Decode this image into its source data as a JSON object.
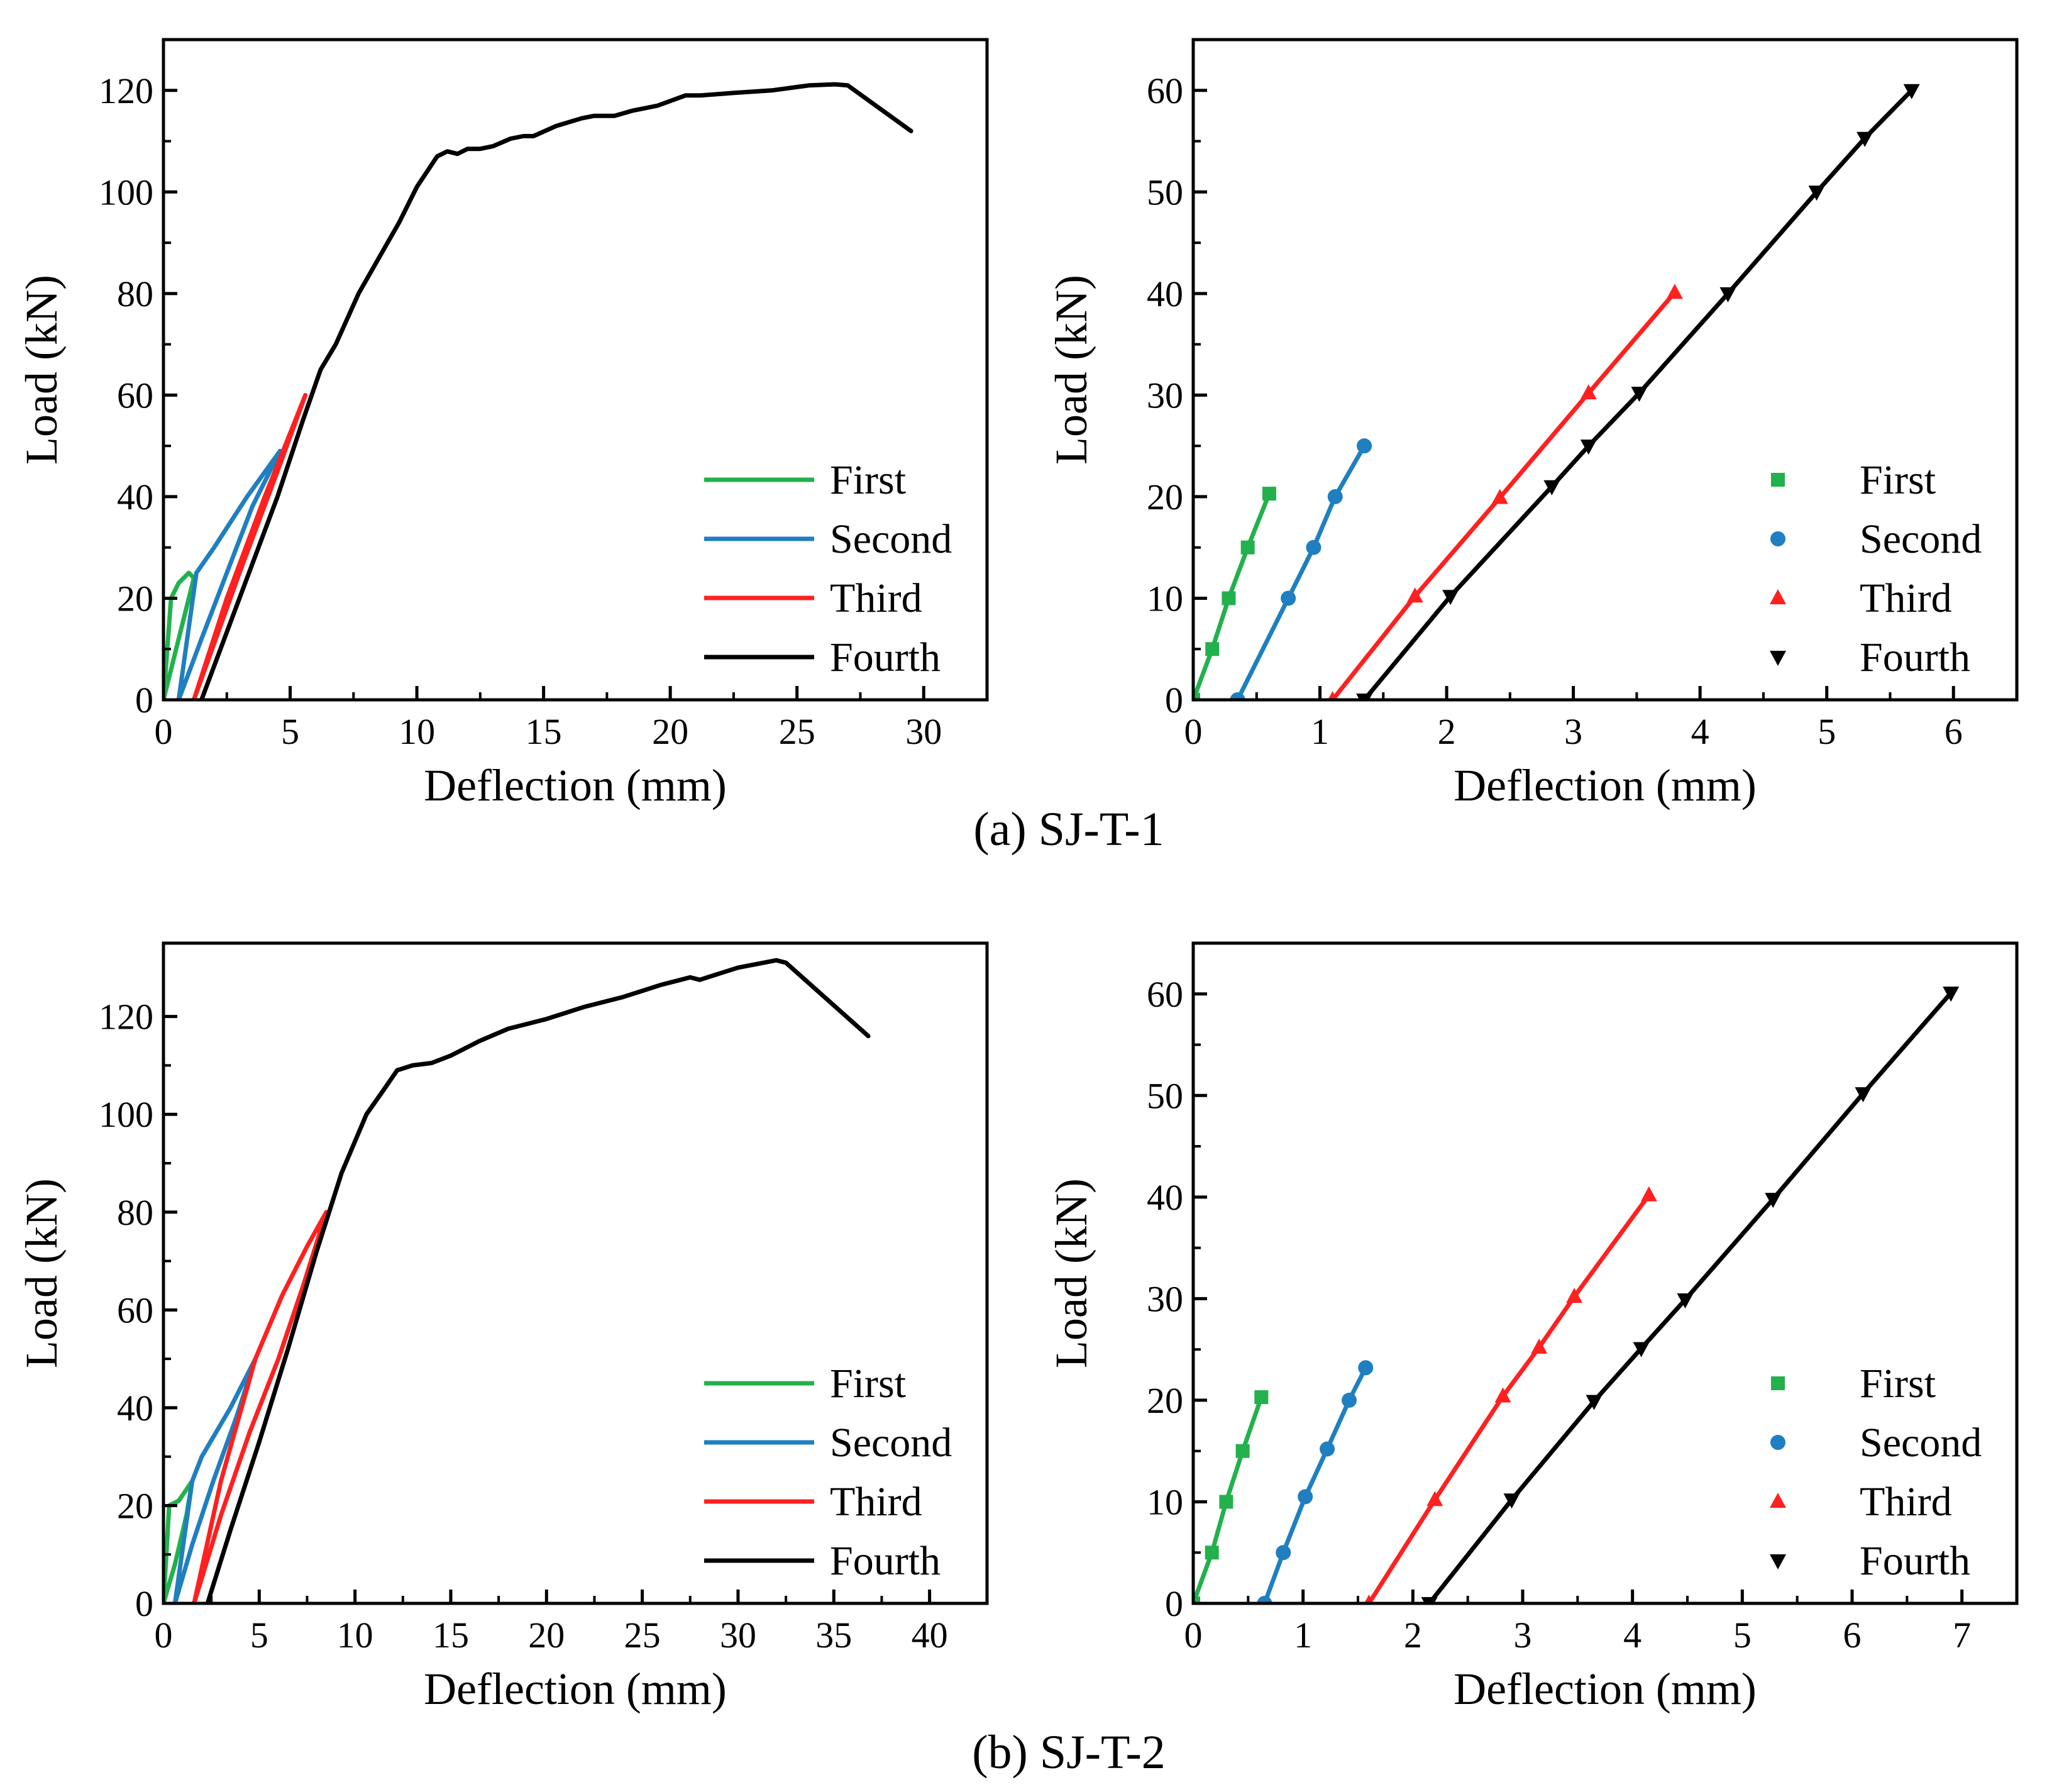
{
  "captions": [
    "(a) SJ-T-1",
    "(b) SJ-T-2"
  ],
  "colors": {
    "First": "#22b14c",
    "Second": "#1f7fc0",
    "Third": "#ff2020",
    "Fourth": "#000000"
  },
  "chart_data": [
    {
      "type": "line",
      "xlabel": "Deflection (mm)",
      "ylabel": "Load (kN)",
      "xlim": [
        0,
        32.5
      ],
      "ylim": [
        0,
        130
      ],
      "xticks": [
        0,
        5,
        10,
        15,
        20,
        25,
        30
      ],
      "yticks": [
        0,
        20,
        40,
        60,
        80,
        100,
        120
      ],
      "legend": "bottom-right",
      "series": [
        {
          "name": "First",
          "x": [
            0,
            0.3,
            0.6,
            1.0,
            1.2,
            0.5,
            0
          ],
          "y": [
            0,
            20,
            23,
            25,
            24,
            10,
            0
          ]
        },
        {
          "name": "Second",
          "x": [
            0.6,
            1.3,
            2.0,
            3.3,
            4.6,
            3.5,
            2.5,
            1.5,
            0.6
          ],
          "y": [
            0,
            25,
            30,
            40,
            49,
            38,
            25,
            12,
            0
          ]
        },
        {
          "name": "Third",
          "x": [
            1.2,
            2.5,
            4.0,
            5.6,
            4.5,
            3.0,
            1.2
          ],
          "y": [
            0,
            20,
            40,
            60,
            45,
            25,
            0
          ]
        },
        {
          "name": "Fourth",
          "x": [
            1.5,
            3.0,
            4.5,
            5.5,
            6.2,
            6.8,
            7.7,
            8.5,
            9.3,
            10.0,
            10.8,
            11.2,
            11.6,
            12.0,
            12.5,
            13.0,
            13.7,
            14.2,
            14.6,
            15.5,
            16.5,
            17.0,
            17.8,
            18.5,
            19.5,
            20.6,
            21.2,
            22.5,
            24.0,
            25.5,
            26.5,
            27.0,
            29.5
          ],
          "y": [
            0,
            20,
            40,
            55,
            65,
            70,
            80,
            87,
            94,
            101,
            107,
            108,
            107.5,
            108.5,
            108.5,
            109,
            110.5,
            111,
            111,
            113,
            114.5,
            115,
            115,
            116,
            117,
            119,
            119,
            119.5,
            120,
            121,
            121.2,
            121,
            112
          ]
        }
      ]
    },
    {
      "type": "scatter",
      "xlabel": "Deflection (mm)",
      "ylabel": "Load (kN)",
      "xlim": [
        0,
        6.5
      ],
      "ylim": [
        0,
        65
      ],
      "xticks": [
        0,
        1,
        2,
        3,
        4,
        5,
        6
      ],
      "yticks": [
        0,
        10,
        20,
        30,
        40,
        50,
        60
      ],
      "legend": "bottom-right",
      "series": [
        {
          "name": "First",
          "marker": "square",
          "x": [
            0,
            0.15,
            0.28,
            0.43,
            0.6
          ],
          "y": [
            0,
            5,
            10,
            15,
            20.3
          ]
        },
        {
          "name": "Second",
          "marker": "circle",
          "x": [
            0.35,
            0.75,
            0.95,
            1.12,
            1.35
          ],
          "y": [
            0,
            10,
            15,
            20,
            25
          ]
        },
        {
          "name": "Third",
          "marker": "triangle-up",
          "x": [
            1.1,
            1.75,
            2.42,
            3.12,
            3.8
          ],
          "y": [
            0,
            10.2,
            19.9,
            30.2,
            40.1
          ]
        },
        {
          "name": "Fourth",
          "marker": "triangle-down",
          "x": [
            1.35,
            2.03,
            2.83,
            3.12,
            3.52,
            4.22,
            4.92,
            5.3,
            5.67
          ],
          "y": [
            0,
            10.2,
            21,
            25,
            30.2,
            40,
            50,
            55.3,
            60
          ]
        }
      ]
    },
    {
      "type": "line",
      "xlabel": "Deflection (mm)",
      "ylabel": "Load (kN)",
      "xlim": [
        0,
        43
      ],
      "ylim": [
        0,
        135
      ],
      "xticks": [
        0,
        5,
        10,
        15,
        20,
        25,
        30,
        35,
        40
      ],
      "yticks": [
        0,
        20,
        40,
        60,
        80,
        100,
        120
      ],
      "legend": "bottom-right",
      "series": [
        {
          "name": "First",
          "x": [
            0,
            0.3,
            0.8,
            1.5,
            1.2,
            0.6,
            0
          ],
          "y": [
            0,
            20,
            21,
            25,
            18,
            8,
            0
          ]
        },
        {
          "name": "Second",
          "x": [
            0.6,
            1.5,
            2.0,
            3.5,
            4.8,
            3.8,
            2.6,
            1.5,
            0.6
          ],
          "y": [
            0,
            25,
            30,
            40,
            50,
            38,
            25,
            12,
            0
          ]
        },
        {
          "name": "Third",
          "x": [
            1.6,
            3.0,
            4.8,
            6.2,
            7.5,
            8.5,
            7.3,
            6.0,
            4.5,
            3.0,
            1.6
          ],
          "y": [
            0,
            25,
            50,
            63,
            73,
            80,
            65,
            50,
            35,
            18,
            0
          ]
        },
        {
          "name": "Fourth",
          "x": [
            2.3,
            3.5,
            5.0,
            6.5,
            8.0,
            9.3,
            10.6,
            11.5,
            12.2,
            13.0,
            14.0,
            15.0,
            16.5,
            18.0,
            20.0,
            22.0,
            24.0,
            26.0,
            27.0,
            27.5,
            28.0,
            30.0,
            32.0,
            32.5,
            36.8
          ],
          "y": [
            0,
            15,
            33,
            52,
            72,
            88,
            100,
            105,
            109,
            110,
            110.5,
            112,
            115,
            117.5,
            119.5,
            122,
            124,
            126.5,
            127.5,
            128,
            127.5,
            130,
            131.5,
            131,
            116
          ]
        }
      ]
    },
    {
      "type": "scatter",
      "xlabel": "Deflection (mm)",
      "ylabel": "Load (kN)",
      "xlim": [
        0,
        7.5
      ],
      "ylim": [
        0,
        65
      ],
      "xticks": [
        0,
        1,
        2,
        3,
        4,
        5,
        6,
        7
      ],
      "yticks": [
        0,
        10,
        20,
        30,
        40,
        50,
        60
      ],
      "legend": "bottom-right",
      "series": [
        {
          "name": "First",
          "marker": "square",
          "x": [
            0,
            0.17,
            0.3,
            0.45,
            0.62
          ],
          "y": [
            0,
            5,
            10,
            15,
            20.3
          ]
        },
        {
          "name": "Second",
          "marker": "circle",
          "x": [
            0.65,
            0.82,
            1.02,
            1.22,
            1.42,
            1.57
          ],
          "y": [
            0,
            5,
            10.5,
            15.2,
            20,
            23.2
          ]
        },
        {
          "name": "Third",
          "marker": "triangle-up",
          "x": [
            1.6,
            2.2,
            2.82,
            3.15,
            3.47,
            4.15
          ],
          "y": [
            0,
            10.2,
            20.4,
            25.2,
            30.2,
            40.2
          ]
        },
        {
          "name": "Fourth",
          "marker": "triangle-down",
          "x": [
            2.15,
            2.9,
            3.65,
            4.08,
            4.48,
            5.28,
            6.1,
            6.9
          ],
          "y": [
            0,
            10.2,
            19.9,
            25.1,
            29.9,
            39.8,
            50.2,
            60.1
          ]
        }
      ]
    }
  ]
}
